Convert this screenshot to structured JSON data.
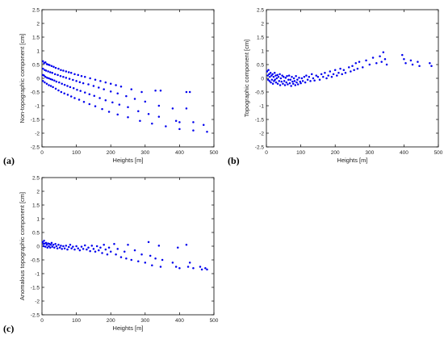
{
  "panels": [
    {
      "label": "(a)"
    },
    {
      "label": "(b)"
    },
    {
      "label": "(c)"
    }
  ],
  "colors": {
    "points": "#0000ee",
    "axes": "#000000",
    "text": "#222222"
  },
  "chart_data": [
    {
      "type": "scatter",
      "xlabel": "Heights [m]",
      "ylabel": "Non-topographic component [cm]",
      "xlim": [
        0,
        500
      ],
      "ylim": [
        -2.5,
        2.5
      ],
      "xticks": [
        0,
        100,
        200,
        300,
        400,
        500
      ],
      "yticks": [
        -2.5,
        -2,
        -1.5,
        -1,
        -0.5,
        0,
        0.5,
        1,
        1.5,
        2,
        2.5
      ],
      "xtick_labels": [
        "0",
        "100",
        "200",
        "300",
        "400",
        "500"
      ],
      "ytick_labels": [
        "-2.5",
        "-2",
        "-1.5",
        "-1",
        "-0.5",
        "0",
        "0.5",
        "1",
        "1.5",
        "2",
        "2.5"
      ],
      "grid": false,
      "points": [
        [
          3,
          0.62
        ],
        [
          6,
          0.55
        ],
        [
          10,
          0.58
        ],
        [
          14,
          0.52
        ],
        [
          18,
          0.5
        ],
        [
          22,
          0.48
        ],
        [
          28,
          0.45
        ],
        [
          34,
          0.42
        ],
        [
          40,
          0.38
        ],
        [
          48,
          0.35
        ],
        [
          55,
          0.3
        ],
        [
          62,
          0.28
        ],
        [
          70,
          0.25
        ],
        [
          78,
          0.22
        ],
        [
          85,
          0.2
        ],
        [
          95,
          0.15
        ],
        [
          105,
          0.12
        ],
        [
          115,
          0.08
        ],
        [
          125,
          0.05
        ],
        [
          140,
          0.0
        ],
        [
          155,
          -0.05
        ],
        [
          170,
          -0.1
        ],
        [
          185,
          -0.15
        ],
        [
          200,
          -0.2
        ],
        [
          215,
          -0.25
        ],
        [
          230,
          -0.3
        ],
        [
          260,
          -0.4
        ],
        [
          290,
          -0.5
        ],
        [
          330,
          -0.45
        ],
        [
          345,
          -0.45
        ],
        [
          420,
          -0.5
        ],
        [
          430,
          -0.5
        ],
        [
          3,
          0.35
        ],
        [
          8,
          0.3
        ],
        [
          12,
          0.28
        ],
        [
          18,
          0.25
        ],
        [
          24,
          0.22
        ],
        [
          30,
          0.2
        ],
        [
          38,
          0.15
        ],
        [
          46,
          0.12
        ],
        [
          54,
          0.08
        ],
        [
          62,
          0.05
        ],
        [
          70,
          0.02
        ],
        [
          80,
          -0.02
        ],
        [
          90,
          -0.06
        ],
        [
          100,
          -0.1
        ],
        [
          110,
          -0.14
        ],
        [
          120,
          -0.18
        ],
        [
          135,
          -0.22
        ],
        [
          150,
          -0.28
        ],
        [
          165,
          -0.34
        ],
        [
          180,
          -0.4
        ],
        [
          200,
          -0.48
        ],
        [
          220,
          -0.55
        ],
        [
          245,
          -0.65
        ],
        [
          270,
          -0.75
        ],
        [
          300,
          -0.85
        ],
        [
          340,
          -1.0
        ],
        [
          380,
          -1.1
        ],
        [
          420,
          -1.1
        ],
        [
          3,
          0.12
        ],
        [
          6,
          0.1
        ],
        [
          10,
          0.05
        ],
        [
          15,
          0.02
        ],
        [
          20,
          0.0
        ],
        [
          25,
          -0.03
        ],
        [
          30,
          -0.05
        ],
        [
          36,
          -0.08
        ],
        [
          42,
          -0.12
        ],
        [
          50,
          -0.15
        ],
        [
          58,
          -0.2
        ],
        [
          66,
          -0.24
        ],
        [
          74,
          -0.28
        ],
        [
          82,
          -0.32
        ],
        [
          92,
          -0.36
        ],
        [
          102,
          -0.42
        ],
        [
          112,
          -0.46
        ],
        [
          125,
          -0.52
        ],
        [
          138,
          -0.58
        ],
        [
          152,
          -0.64
        ],
        [
          168,
          -0.72
        ],
        [
          185,
          -0.8
        ],
        [
          205,
          -0.88
        ],
        [
          225,
          -0.96
        ],
        [
          250,
          -1.05
        ],
        [
          280,
          -1.2
        ],
        [
          310,
          -1.3
        ],
        [
          340,
          -1.4
        ],
        [
          390,
          -1.55
        ],
        [
          400,
          -1.6
        ],
        [
          440,
          -1.6
        ],
        [
          470,
          -1.7
        ],
        [
          3,
          -0.1
        ],
        [
          8,
          -0.15
        ],
        [
          14,
          -0.2
        ],
        [
          20,
          -0.25
        ],
        [
          26,
          -0.28
        ],
        [
          32,
          -0.32
        ],
        [
          40,
          -0.38
        ],
        [
          48,
          -0.44
        ],
        [
          56,
          -0.5
        ],
        [
          65,
          -0.55
        ],
        [
          75,
          -0.6
        ],
        [
          85,
          -0.66
        ],
        [
          95,
          -0.72
        ],
        [
          108,
          -0.78
        ],
        [
          122,
          -0.86
        ],
        [
          138,
          -0.94
        ],
        [
          155,
          -1.02
        ],
        [
          175,
          -1.12
        ],
        [
          195,
          -1.22
        ],
        [
          220,
          -1.32
        ],
        [
          250,
          -1.42
        ],
        [
          285,
          -1.55
        ],
        [
          320,
          -1.65
        ],
        [
          360,
          -1.75
        ],
        [
          400,
          -1.85
        ],
        [
          440,
          -1.9
        ],
        [
          480,
          -1.95
        ]
      ]
    },
    {
      "type": "scatter",
      "xlabel": "Heights [m]",
      "ylabel": "Topographic component [cm]",
      "xlim": [
        0,
        500
      ],
      "ylim": [
        -2.5,
        2.5
      ],
      "xticks": [
        0,
        100,
        200,
        300,
        400,
        500
      ],
      "yticks": [
        -2.5,
        -2,
        -1.5,
        -1,
        -0.5,
        0,
        0.5,
        1,
        1.5,
        2,
        2.5
      ],
      "xtick_labels": [
        "0",
        "100",
        "200",
        "300",
        "400",
        "500"
      ],
      "ytick_labels": [
        "-2.5",
        "-2",
        "-1.5",
        "-1",
        "-0.5",
        "0",
        "0.5",
        "1",
        "1.5",
        "2",
        "2.5"
      ],
      "grid": false,
      "points": [
        [
          2,
          0.25
        ],
        [
          4,
          0.1
        ],
        [
          5,
          -0.05
        ],
        [
          6,
          0.3
        ],
        [
          8,
          0.15
        ],
        [
          9,
          -0.1
        ],
        [
          10,
          0.05
        ],
        [
          12,
          0.2
        ],
        [
          13,
          -0.15
        ],
        [
          15,
          0.1
        ],
        [
          16,
          -0.05
        ],
        [
          18,
          0.15
        ],
        [
          19,
          -0.2
        ],
        [
          21,
          0.05
        ],
        [
          22,
          -0.1
        ],
        [
          24,
          0.2
        ],
        [
          25,
          -0.05
        ],
        [
          27,
          0.1
        ],
        [
          28,
          -0.15
        ],
        [
          30,
          0.0
        ],
        [
          32,
          0.12
        ],
        [
          33,
          -0.2
        ],
        [
          35,
          0.05
        ],
        [
          37,
          -0.1
        ],
        [
          39,
          0.15
        ],
        [
          40,
          -0.25
        ],
        [
          42,
          0.0
        ],
        [
          44,
          -0.12
        ],
        [
          46,
          0.1
        ],
        [
          48,
          -0.2
        ],
        [
          50,
          0.05
        ],
        [
          52,
          -0.1
        ],
        [
          54,
          -0.25
        ],
        [
          56,
          0.02
        ],
        [
          58,
          -0.15
        ],
        [
          60,
          0.08
        ],
        [
          62,
          -0.22
        ],
        [
          64,
          -0.05
        ],
        [
          66,
          0.1
        ],
        [
          68,
          -0.18
        ],
        [
          70,
          -0.05
        ],
        [
          72,
          -0.28
        ],
        [
          74,
          0.05
        ],
        [
          76,
          -0.12
        ],
        [
          78,
          -0.2
        ],
        [
          80,
          0.0
        ],
        [
          82,
          -0.1
        ],
        [
          84,
          -0.25
        ],
        [
          86,
          0.08
        ],
        [
          88,
          -0.15
        ],
        [
          90,
          -0.05
        ],
        [
          92,
          -0.22
        ],
        [
          95,
          0.02
        ],
        [
          98,
          -0.12
        ],
        [
          100,
          -0.18
        ],
        [
          103,
          0.0
        ],
        [
          106,
          -0.1
        ],
        [
          110,
          0.05
        ],
        [
          113,
          -0.15
        ],
        [
          116,
          0.1
        ],
        [
          120,
          -0.05
        ],
        [
          124,
          0.05
        ],
        [
          128,
          -0.1
        ],
        [
          132,
          0.15
        ],
        [
          136,
          0.0
        ],
        [
          140,
          -0.08
        ],
        [
          145,
          0.1
        ],
        [
          150,
          0.05
        ],
        [
          155,
          -0.05
        ],
        [
          160,
          0.15
        ],
        [
          165,
          0.05
        ],
        [
          170,
          0.2
        ],
        [
          175,
          0.0
        ],
        [
          180,
          0.1
        ],
        [
          185,
          0.25
        ],
        [
          190,
          0.05
        ],
        [
          195,
          0.15
        ],
        [
          200,
          0.3
        ],
        [
          205,
          0.1
        ],
        [
          210,
          0.2
        ],
        [
          215,
          0.35
        ],
        [
          220,
          0.15
        ],
        [
          225,
          0.3
        ],
        [
          230,
          0.2
        ],
        [
          240,
          0.4
        ],
        [
          245,
          0.25
        ],
        [
          250,
          0.45
        ],
        [
          255,
          0.3
        ],
        [
          260,
          0.55
        ],
        [
          265,
          0.35
        ],
        [
          270,
          0.6
        ],
        [
          280,
          0.4
        ],
        [
          290,
          0.65
        ],
        [
          300,
          0.5
        ],
        [
          310,
          0.75
        ],
        [
          320,
          0.55
        ],
        [
          330,
          0.8
        ],
        [
          335,
          0.6
        ],
        [
          340,
          0.95
        ],
        [
          345,
          0.7
        ],
        [
          350,
          0.5
        ],
        [
          395,
          0.85
        ],
        [
          400,
          0.7
        ],
        [
          405,
          0.55
        ],
        [
          420,
          0.65
        ],
        [
          425,
          0.5
        ],
        [
          440,
          0.6
        ],
        [
          445,
          0.45
        ],
        [
          475,
          0.55
        ],
        [
          480,
          0.45
        ]
      ]
    },
    {
      "type": "scatter",
      "xlabel": "Heights [m]",
      "ylabel": "Anomalous topographic component [cm]",
      "xlim": [
        0,
        500
      ],
      "ylim": [
        -2.5,
        2.5
      ],
      "xticks": [
        0,
        100,
        200,
        300,
        400,
        500
      ],
      "yticks": [
        -2.5,
        -2,
        -1.5,
        -1,
        -0.5,
        0,
        0.5,
        1,
        1.5,
        2,
        2.5
      ],
      "xtick_labels": [
        "0",
        "100",
        "200",
        "300",
        "400",
        "500"
      ],
      "ytick_labels": [
        "-2.5",
        "-2",
        "-1.5",
        "-1",
        "-0.5",
        "0",
        "0.5",
        "1",
        "1.5",
        "2",
        "2.5"
      ],
      "grid": false,
      "points": [
        [
          2,
          0.15
        ],
        [
          4,
          0.08
        ],
        [
          5,
          0.0
        ],
        [
          6,
          0.2
        ],
        [
          8,
          0.1
        ],
        [
          10,
          -0.02
        ],
        [
          12,
          0.12
        ],
        [
          14,
          0.05
        ],
        [
          16,
          -0.05
        ],
        [
          18,
          0.1
        ],
        [
          20,
          0.0
        ],
        [
          22,
          0.08
        ],
        [
          24,
          -0.05
        ],
        [
          26,
          0.05
        ],
        [
          28,
          0.12
        ],
        [
          30,
          -0.02
        ],
        [
          33,
          0.05
        ],
        [
          36,
          -0.05
        ],
        [
          39,
          0.08
        ],
        [
          42,
          0.0
        ],
        [
          45,
          -0.08
        ],
        [
          48,
          0.05
        ],
        [
          52,
          -0.05
        ],
        [
          55,
          0.02
        ],
        [
          58,
          -0.1
        ],
        [
          62,
          0.0
        ],
        [
          66,
          -0.08
        ],
        [
          70,
          0.02
        ],
        [
          74,
          -0.12
        ],
        [
          78,
          -0.03
        ],
        [
          82,
          0.05
        ],
        [
          86,
          -0.08
        ],
        [
          90,
          -0.02
        ],
        [
          95,
          -0.12
        ],
        [
          100,
          0.0
        ],
        [
          105,
          -0.08
        ],
        [
          110,
          -0.15
        ],
        [
          115,
          -0.02
        ],
        [
          120,
          -0.1
        ],
        [
          125,
          0.03
        ],
        [
          130,
          -0.12
        ],
        [
          135,
          -0.05
        ],
        [
          140,
          -0.18
        ],
        [
          145,
          0.02
        ],
        [
          150,
          -0.1
        ],
        [
          155,
          -0.2
        ],
        [
          160,
          0.0
        ],
        [
          165,
          -0.15
        ],
        [
          170,
          -0.05
        ],
        [
          175,
          -0.25
        ],
        [
          180,
          0.05
        ],
        [
          185,
          -0.12
        ],
        [
          190,
          -0.3
        ],
        [
          195,
          -0.05
        ],
        [
          200,
          -0.2
        ],
        [
          210,
          0.08
        ],
        [
          215,
          -0.3
        ],
        [
          220,
          -0.1
        ],
        [
          230,
          -0.4
        ],
        [
          240,
          -0.2
        ],
        [
          245,
          -0.45
        ],
        [
          250,
          0.05
        ],
        [
          260,
          -0.5
        ],
        [
          270,
          -0.15
        ],
        [
          280,
          -0.55
        ],
        [
          290,
          -0.3
        ],
        [
          300,
          -0.6
        ],
        [
          310,
          0.15
        ],
        [
          315,
          -0.35
        ],
        [
          320,
          -0.7
        ],
        [
          330,
          -0.45
        ],
        [
          340,
          0.02
        ],
        [
          345,
          -0.75
        ],
        [
          350,
          -0.5
        ],
        [
          380,
          -0.6
        ],
        [
          390,
          -0.75
        ],
        [
          395,
          -0.05
        ],
        [
          400,
          -0.8
        ],
        [
          420,
          0.05
        ],
        [
          425,
          -0.75
        ],
        [
          430,
          -0.6
        ],
        [
          440,
          -0.8
        ],
        [
          460,
          -0.75
        ],
        [
          465,
          -0.85
        ],
        [
          475,
          -0.8
        ],
        [
          480,
          -0.85
        ]
      ]
    }
  ]
}
